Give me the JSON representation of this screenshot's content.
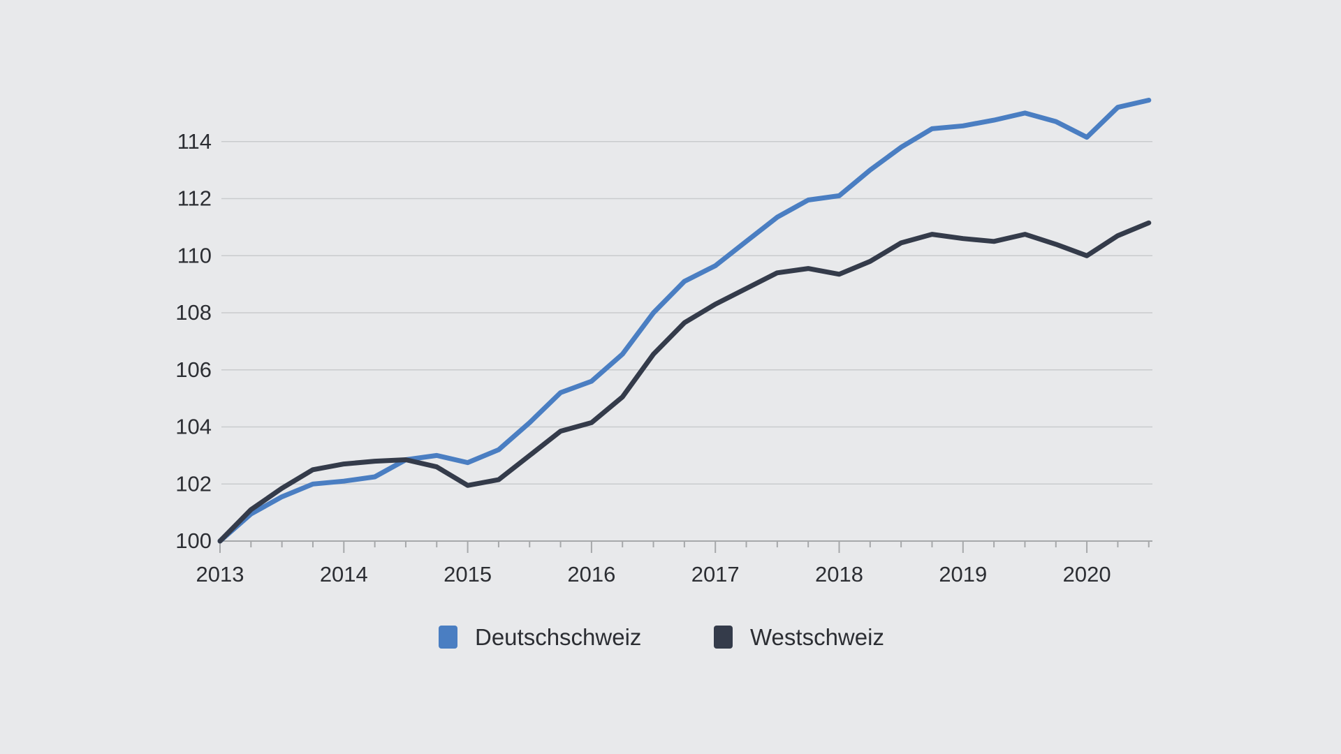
{
  "chart_data": {
    "type": "line",
    "title": "",
    "xlabel": "",
    "ylabel": "",
    "grid": true,
    "legend_position": "bottom",
    "x": [
      2013,
      2013.25,
      2013.5,
      2013.75,
      2014,
      2014.25,
      2014.5,
      2014.75,
      2015,
      2015.25,
      2015.5,
      2015.75,
      2016,
      2016.25,
      2016.5,
      2016.75,
      2017,
      2017.25,
      2017.5,
      2017.75,
      2018,
      2018.25,
      2018.5,
      2018.75,
      2019,
      2019.25,
      2019.5,
      2019.75,
      2020,
      2020.25,
      2020.5
    ],
    "x_tick_labels": [
      "2013",
      "2014",
      "2015",
      "2016",
      "2017",
      "2018",
      "2019",
      "2020"
    ],
    "y_ticks": [
      100,
      102,
      104,
      106,
      108,
      110,
      112,
      114
    ],
    "ylim": [
      100,
      116
    ],
    "series": [
      {
        "name": "Deutschschweiz",
        "color": "#4a7ec2",
        "values": [
          100,
          100.95,
          101.55,
          102,
          102.1,
          102.25,
          102.85,
          103,
          102.75,
          103.2,
          104.15,
          105.2,
          105.6,
          106.55,
          108,
          109.1,
          109.65,
          110.5,
          111.35,
          111.95,
          112.1,
          113,
          113.8,
          114.45,
          114.55,
          114.75,
          115,
          114.7,
          114.15,
          115.2,
          115.45
        ]
      },
      {
        "name": "Westschweiz",
        "color": "#343b4a",
        "values": [
          100,
          101.1,
          101.85,
          102.5,
          102.7,
          102.8,
          102.85,
          102.6,
          101.95,
          102.15,
          103,
          103.85,
          104.15,
          105.05,
          106.55,
          107.65,
          108.3,
          108.85,
          109.4,
          109.55,
          109.35,
          109.8,
          110.45,
          110.75,
          110.6,
          110.5,
          110.75,
          110.4,
          110,
          110.7,
          111.15
        ]
      }
    ]
  },
  "colors": {
    "background": "#e8e9eb",
    "gridline": "#c9cbcd",
    "axis": "#a6a8aa",
    "text": "#2c2e33"
  }
}
